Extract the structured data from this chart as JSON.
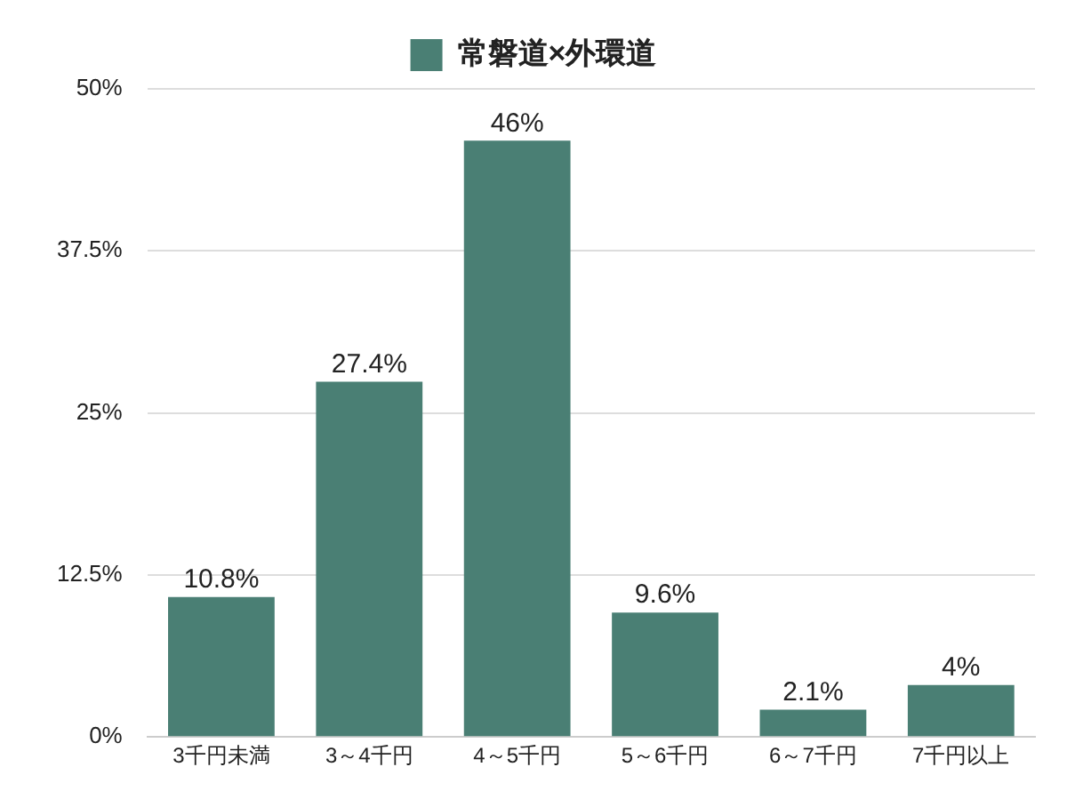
{
  "chart_data": {
    "type": "bar",
    "categories": [
      "3千円未満",
      "3～4千円",
      "4～5千円",
      "5～6千円",
      "6～7千円",
      "7千円以上"
    ],
    "series": [
      {
        "name": "常磐道×外環道",
        "color": "#4a7f74",
        "values": [
          10.8,
          27.4,
          46,
          9.6,
          2.1,
          4
        ],
        "value_labels": [
          "10.8%",
          "27.4%",
          "46%",
          "9.6%",
          "2.1%",
          "4%"
        ]
      }
    ],
    "ylim": [
      0,
      50
    ],
    "yticks": [
      {
        "value": 0,
        "label": "0%"
      },
      {
        "value": 12.5,
        "label": "12.5%"
      },
      {
        "value": 25,
        "label": "25%"
      },
      {
        "value": 37.5,
        "label": "37.5%"
      },
      {
        "value": 50,
        "label": "50%"
      }
    ],
    "grid": "y",
    "legend": "top"
  }
}
